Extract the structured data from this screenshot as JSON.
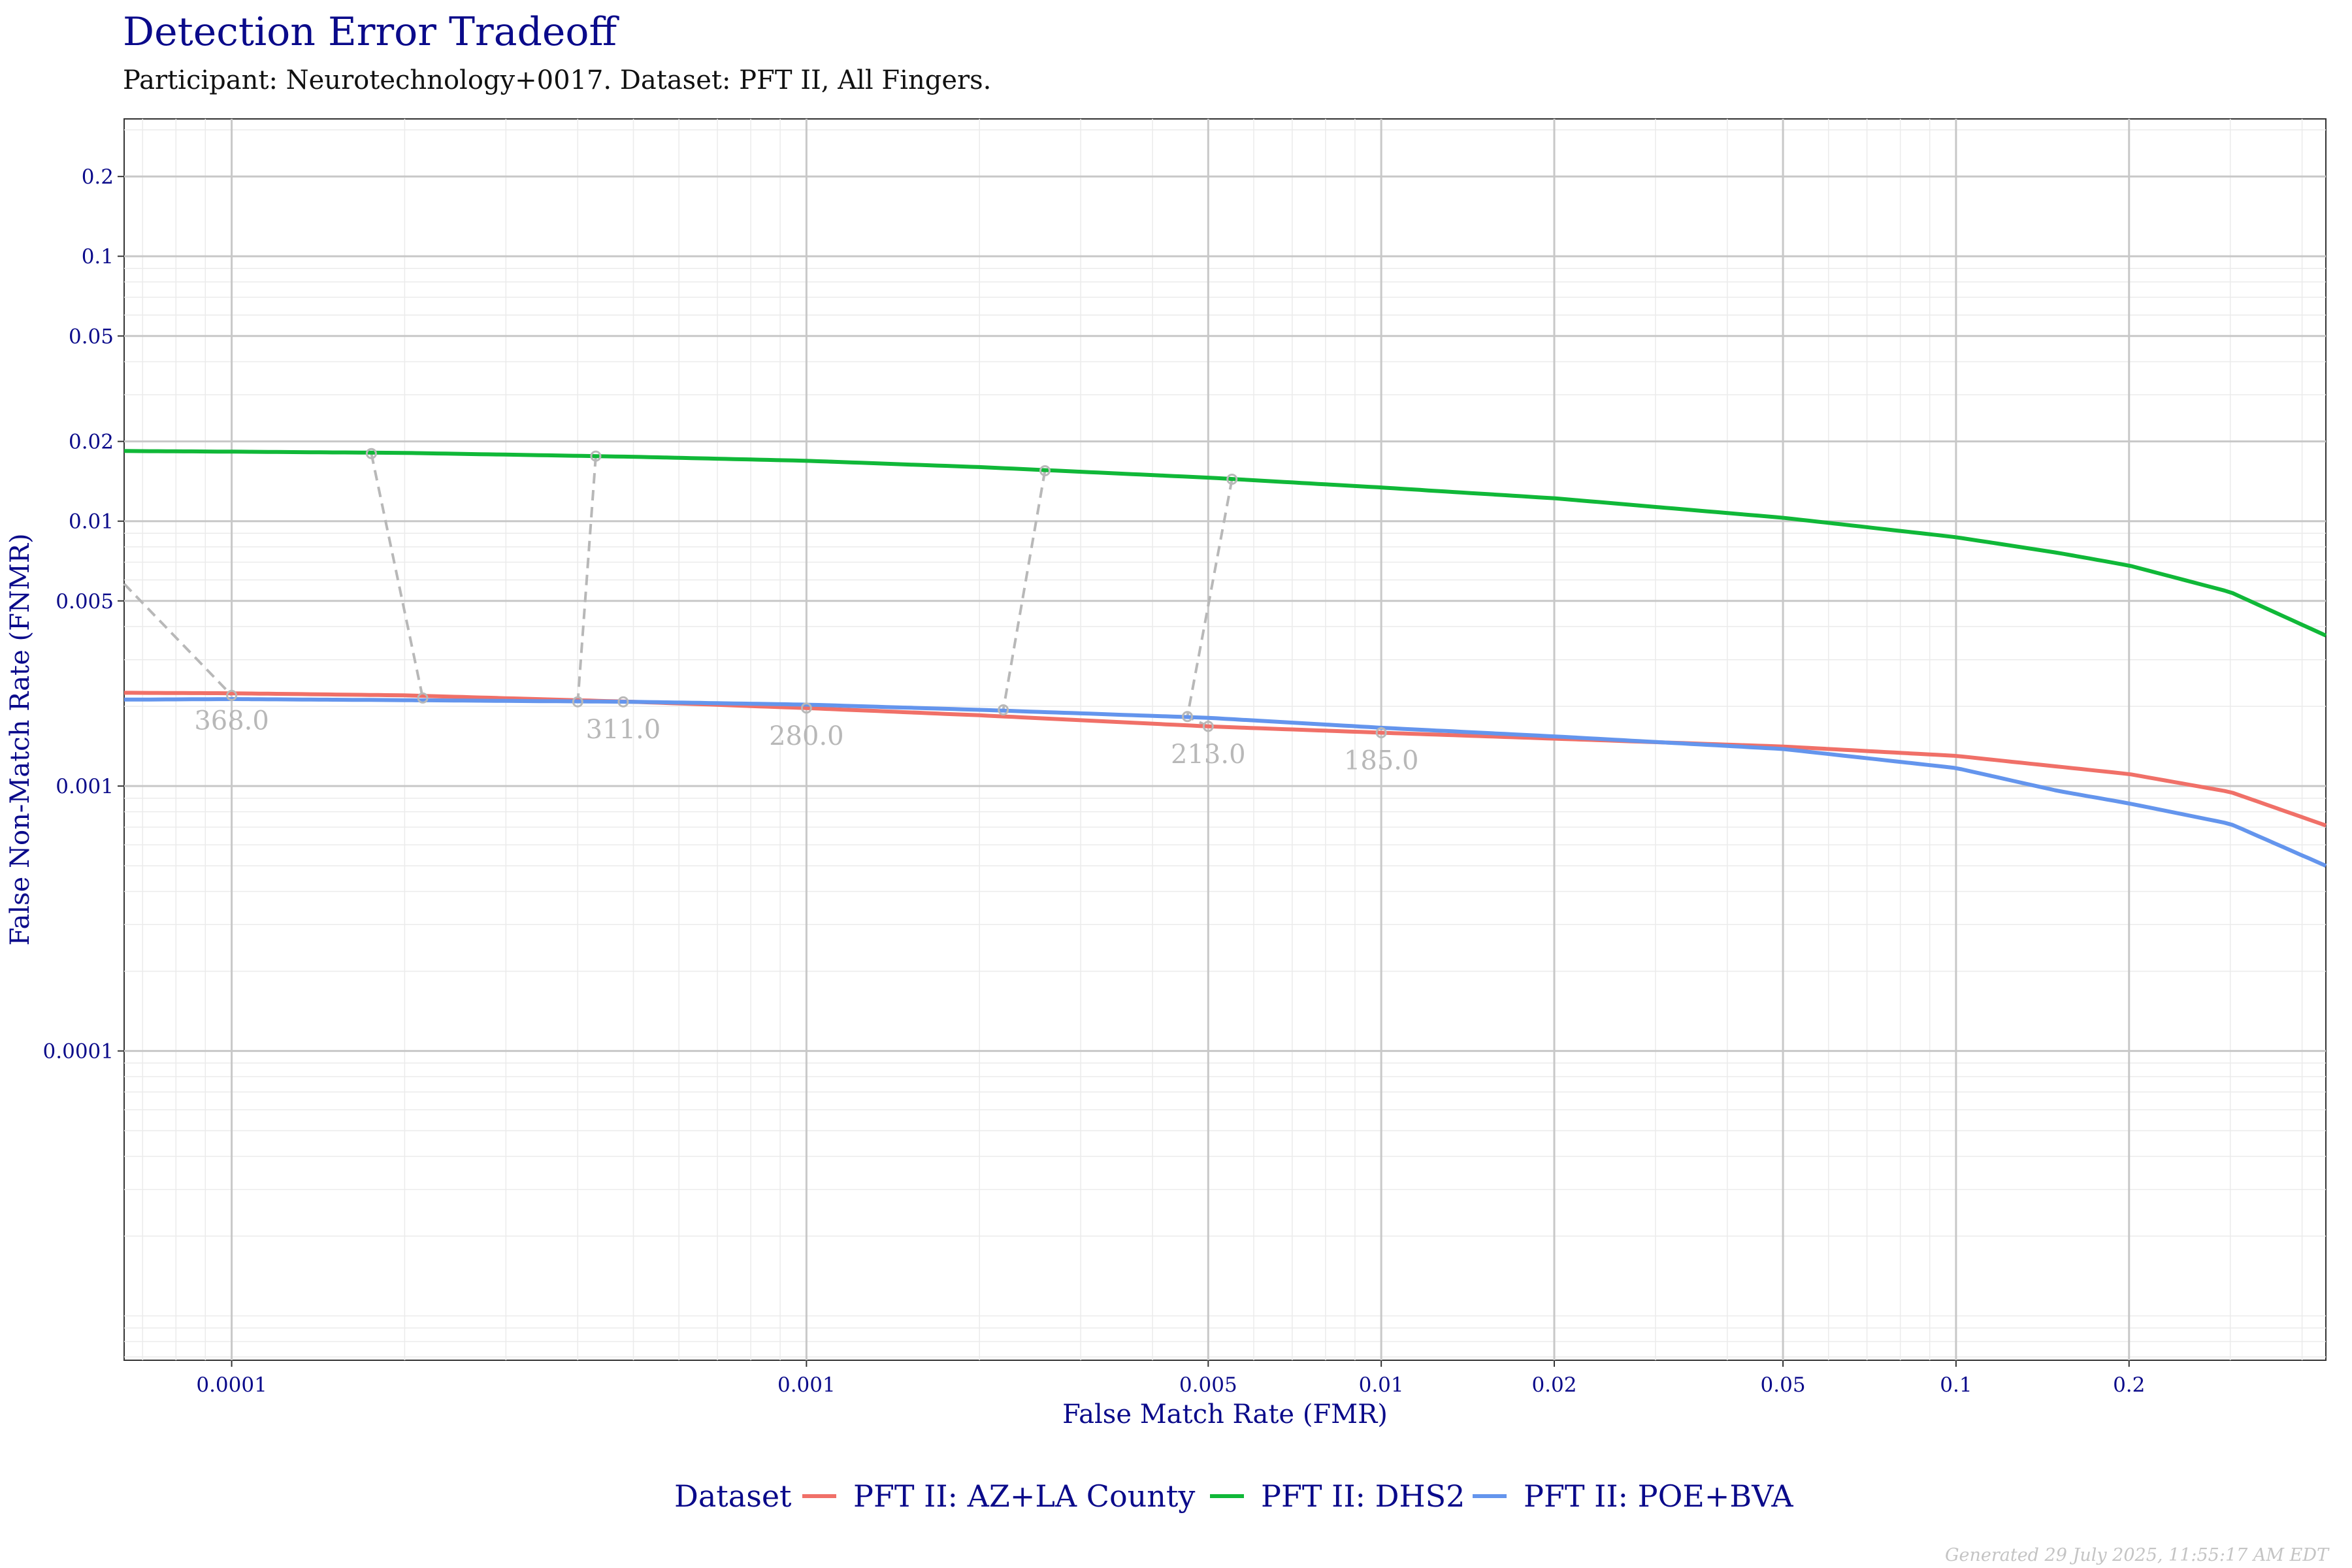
{
  "title": "Detection Error Tradeoff",
  "subtitle": "Participant: Neurotechnology+0017. Dataset: PFT II, All Fingers.",
  "footer": "Generated 29 July 2025, 11:55:17 AM EDT",
  "colors": {
    "PFT II: AZ+LA County": "#f07068",
    "PFT II: DHS2": "#10b838",
    "PFT II: POE+BVA": "#6495ed",
    "threshold": "#b8b8b8",
    "text": "#0a0a8a"
  },
  "chart_data": {
    "type": "line",
    "title": "Detection Error Tradeoff",
    "subtitle": "Participant: Neurotechnology+0017. Dataset: PFT II, All Fingers.",
    "xlabel": "False Match Rate (FMR)",
    "ylabel": "False Non-Match Rate (FNMR)",
    "x_scale": "log",
    "y_scale": "log",
    "xlim": [
      6.5e-05,
      0.44
    ],
    "ylim": [
      6.8e-06,
      0.33
    ],
    "x_ticks": [
      {
        "value": 0.0001,
        "label": "0.0001"
      },
      {
        "value": 0.001,
        "label": "0.001"
      },
      {
        "value": 0.005,
        "label": "0.005"
      },
      {
        "value": 0.01,
        "label": "0.01"
      },
      {
        "value": 0.02,
        "label": "0.02"
      },
      {
        "value": 0.05,
        "label": "0.05"
      },
      {
        "value": 0.1,
        "label": "0.1"
      },
      {
        "value": 0.2,
        "label": "0.2"
      }
    ],
    "y_ticks": [
      {
        "value": 0.0001,
        "label": "0.0001"
      },
      {
        "value": 0.001,
        "label": "0.001"
      },
      {
        "value": 0.005,
        "label": "0.005"
      },
      {
        "value": 0.01,
        "label": "0.01"
      },
      {
        "value": 0.02,
        "label": "0.02"
      },
      {
        "value": 0.05,
        "label": "0.05"
      },
      {
        "value": 0.1,
        "label": "0.1"
      },
      {
        "value": 0.2,
        "label": "0.2"
      }
    ],
    "grid": true,
    "legend": {
      "title": "Dataset",
      "position": "bottom"
    },
    "series": [
      {
        "name": "PFT II: AZ+LA County",
        "x": [
          6.5e-05,
          0.0001,
          0.0002,
          0.0005,
          0.001,
          0.002,
          0.005,
          0.01,
          0.02,
          0.05,
          0.1,
          0.2,
          0.3,
          0.44
        ],
        "y": [
          0.00225,
          0.00224,
          0.0022,
          0.00208,
          0.00197,
          0.00185,
          0.00168,
          0.00159,
          0.00151,
          0.00141,
          0.0013,
          0.00111,
          0.00095,
          0.00071
        ]
      },
      {
        "name": "PFT II: DHS2",
        "x": [
          6.5e-05,
          0.0001,
          0.0002,
          0.0005,
          0.001,
          0.002,
          0.005,
          0.01,
          0.02,
          0.05,
          0.1,
          0.15,
          0.2,
          0.3,
          0.44
        ],
        "y": [
          0.0184,
          0.0183,
          0.0181,
          0.0175,
          0.0169,
          0.016,
          0.0146,
          0.0134,
          0.0122,
          0.0103,
          0.0087,
          0.0076,
          0.0068,
          0.0054,
          0.0037
        ]
      },
      {
        "name": "PFT II: POE+BVA",
        "x": [
          6.5e-05,
          0.0001,
          0.0002,
          0.0005,
          0.001,
          0.002,
          0.005,
          0.01,
          0.02,
          0.05,
          0.1,
          0.15,
          0.2,
          0.3,
          0.44
        ],
        "y": [
          0.00212,
          0.00213,
          0.00211,
          0.00208,
          0.00203,
          0.00194,
          0.00181,
          0.00166,
          0.00154,
          0.00138,
          0.00117,
          0.00096,
          0.00086,
          0.00072,
          0.0005
        ]
      }
    ],
    "thresholds": [
      {
        "label": "",
        "points": [
          [
            6.5e-05,
            0.0058
          ],
          [
            0.0001,
            0.0022
          ]
        ]
      },
      {
        "label": "368.0",
        "label_at": [
          0.0001,
          0.00225
        ],
        "points": [
          [
            0.000175,
            0.018
          ],
          [
            0.000215,
            0.00215
          ]
        ]
      },
      {
        "label": "311.0",
        "label_at": [
          0.00048,
          0.00208
        ],
        "points": [
          [
            0.00043,
            0.0176
          ],
          [
            0.0004,
            0.00208
          ],
          [
            0.00048,
            0.00208
          ]
        ]
      },
      {
        "label": "280.0",
        "label_at": [
          0.001,
          0.00197
        ],
        "points": [
          [
            0.001,
            0.00197
          ]
        ]
      },
      {
        "label": "",
        "points": [
          [
            0.0026,
            0.0155
          ],
          [
            0.0022,
            0.00194
          ]
        ]
      },
      {
        "label": "213.0",
        "label_at": [
          0.005,
          0.00168
        ],
        "points": [
          [
            0.0055,
            0.0144
          ],
          [
            0.0046,
            0.00183
          ],
          [
            0.005,
            0.00168
          ]
        ]
      },
      {
        "label": "185.0",
        "label_at": [
          0.01,
          0.00159
        ],
        "points": [
          [
            0.01,
            0.00159
          ]
        ]
      }
    ]
  }
}
